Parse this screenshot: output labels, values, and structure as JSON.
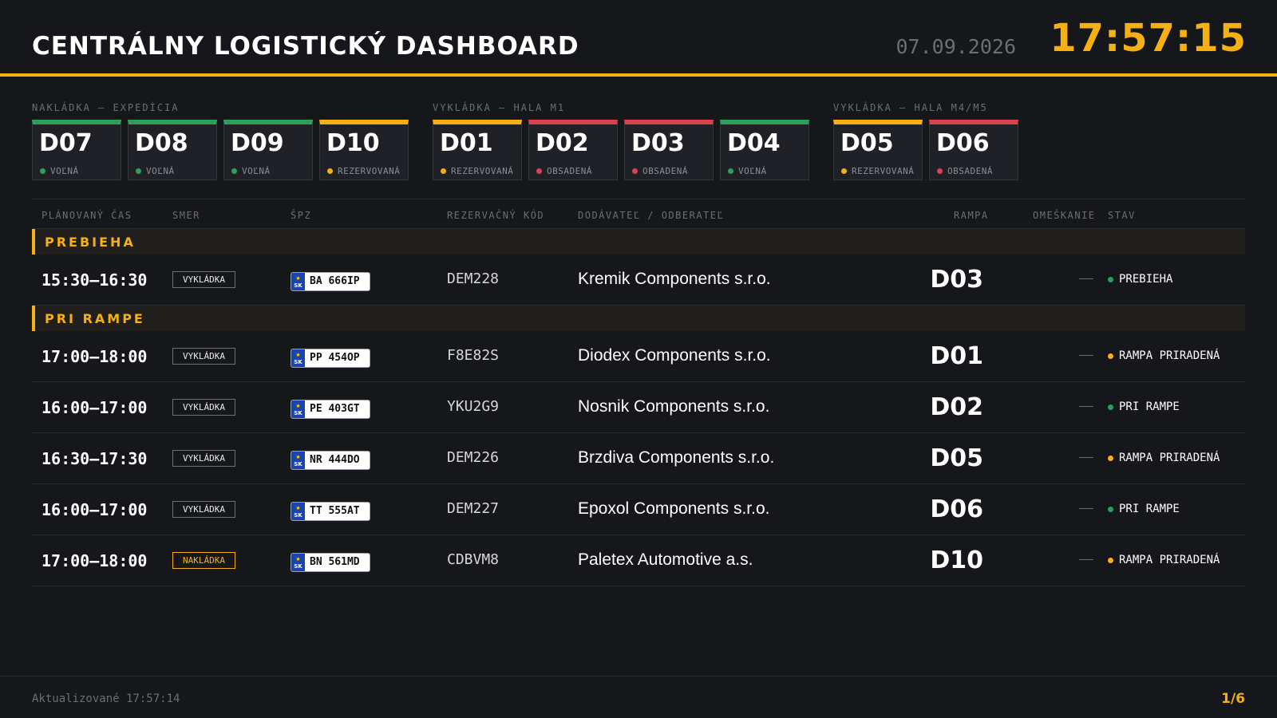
{
  "header": {
    "title": "CENTRÁLNY LOGISTICKÝ DASHBOARD",
    "date": "07.09.2026",
    "clock": "17:57:15"
  },
  "dock_groups": [
    {
      "label": "NAKLÁDKA — EXPEDÍCIA",
      "docks": [
        {
          "id": "D07",
          "status": "VOĽNÁ",
          "color": "green"
        },
        {
          "id": "D08",
          "status": "VOĽNÁ",
          "color": "green"
        },
        {
          "id": "D09",
          "status": "VOĽNÁ",
          "color": "green"
        },
        {
          "id": "D10",
          "status": "REZERVOVANÁ",
          "color": "yellow"
        }
      ]
    },
    {
      "label": "VYKLÁDKA — HALA M1",
      "docks": [
        {
          "id": "D01",
          "status": "REZERVOVANÁ",
          "color": "yellow"
        },
        {
          "id": "D02",
          "status": "OBSADENÁ",
          "color": "red"
        },
        {
          "id": "D03",
          "status": "OBSADENÁ",
          "color": "red"
        },
        {
          "id": "D04",
          "status": "VOĽNÁ",
          "color": "green"
        }
      ]
    },
    {
      "label": "VYKLÁDKA — HALA M4/M5",
      "docks": [
        {
          "id": "D05",
          "status": "REZERVOVANÁ",
          "color": "yellow"
        },
        {
          "id": "D06",
          "status": "OBSADENÁ",
          "color": "red"
        }
      ]
    }
  ],
  "table": {
    "columns": {
      "time": "PLÁNOVANÝ ČAS",
      "direction": "SMER",
      "plate": "ŠPZ",
      "code": "REZERVAČNÝ KÓD",
      "party": "DODÁVATEĽ / ODBERATEĽ",
      "ramp": "RAMPA",
      "delay": "OMEŠKANIE",
      "status": "STAV"
    },
    "sections": [
      {
        "title": "PREBIEHA",
        "rows": [
          {
            "time": "15:30–16:30",
            "direction": "VYKLÁDKA",
            "dir_type": "unload",
            "plate_country": "SK",
            "plate": "BA 666IP",
            "code": "DEM228",
            "party": "Kremik Components s.r.o.",
            "ramp": "D03",
            "delay": "—",
            "status": "PREBIEHA",
            "status_color": "green"
          }
        ]
      },
      {
        "title": "PRI RAMPE",
        "rows": [
          {
            "time": "17:00–18:00",
            "direction": "VYKLÁDKA",
            "dir_type": "unload",
            "plate_country": "SK",
            "plate": "PP 454OP",
            "code": "F8E82S",
            "party": "Diodex Components s.r.o.",
            "ramp": "D01",
            "delay": "—",
            "status": "RAMPA PRIRADENÁ",
            "status_color": "yellow"
          },
          {
            "time": "16:00–17:00",
            "direction": "VYKLÁDKA",
            "dir_type": "unload",
            "plate_country": "SK",
            "plate": "PE 403GT",
            "code": "YKU2G9",
            "party": "Nosnik Components s.r.o.",
            "ramp": "D02",
            "delay": "—",
            "status": "PRI RAMPE",
            "status_color": "green"
          },
          {
            "time": "16:30–17:30",
            "direction": "VYKLÁDKA",
            "dir_type": "unload",
            "plate_country": "SK",
            "plate": "NR 444DO",
            "code": "DEM226",
            "party": "Brzdiva Components s.r.o.",
            "ramp": "D05",
            "delay": "—",
            "status": "RAMPA PRIRADENÁ",
            "status_color": "yellow"
          },
          {
            "time": "16:00–17:00",
            "direction": "VYKLÁDKA",
            "dir_type": "unload",
            "plate_country": "SK",
            "plate": "TT 555AT",
            "code": "DEM227",
            "party": "Epoxol Components s.r.o.",
            "ramp": "D06",
            "delay": "—",
            "status": "PRI RAMPE",
            "status_color": "green"
          },
          {
            "time": "17:00–18:00",
            "direction": "NAKLÁDKA",
            "dir_type": "load",
            "plate_country": "SK",
            "plate": "BN 561MD",
            "code": "CDBVM8",
            "party": "Paletex Automotive a.s.",
            "ramp": "D10",
            "delay": "—",
            "status": "RAMPA PRIRADENÁ",
            "status_color": "yellow"
          }
        ]
      }
    ]
  },
  "footer": {
    "updated": "Aktualizované 17:57:14",
    "page": "1/6"
  },
  "colors": {
    "accent": "#f5b014",
    "green": "#2e9e5a",
    "red": "#d9434e",
    "background": "#16171b"
  }
}
